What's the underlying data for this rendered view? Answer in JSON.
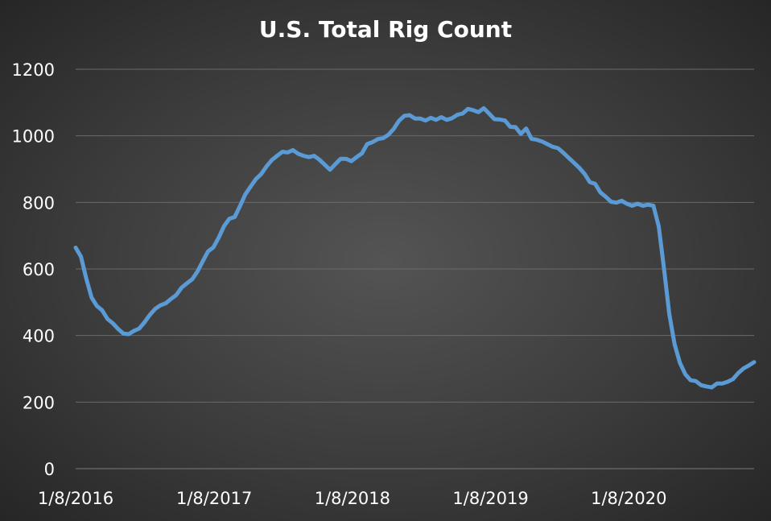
{
  "chart_data": {
    "type": "line",
    "title": "U.S. Total Rig Count",
    "xlabel": "",
    "ylabel": "",
    "ylim": [
      0,
      1200
    ],
    "yticks": [
      0,
      200,
      400,
      600,
      800,
      1000,
      1200
    ],
    "xticks": [
      "1/8/2016",
      "1/8/2017",
      "1/8/2018",
      "1/8/2019",
      "1/8/2020"
    ],
    "xrange": [
      "2016-01-08",
      "2020-12-04"
    ],
    "grid": true,
    "legend": "none",
    "line_color": "#5b9bd5",
    "series": [
      {
        "points": [
          [
            "2016-01-08",
            664
          ],
          [
            "2016-01-22",
            637
          ],
          [
            "2016-02-05",
            571
          ],
          [
            "2016-02-19",
            514
          ],
          [
            "2016-03-04",
            489
          ],
          [
            "2016-03-18",
            476
          ],
          [
            "2016-04-01",
            450
          ],
          [
            "2016-04-15",
            437
          ],
          [
            "2016-04-29",
            420
          ],
          [
            "2016-05-13",
            406
          ],
          [
            "2016-05-27",
            404
          ],
          [
            "2016-06-10",
            414
          ],
          [
            "2016-06-24",
            421
          ],
          [
            "2016-07-08",
            440
          ],
          [
            "2016-07-22",
            462
          ],
          [
            "2016-08-05",
            480
          ],
          [
            "2016-08-19",
            491
          ],
          [
            "2016-09-02",
            497
          ],
          [
            "2016-09-16",
            510
          ],
          [
            "2016-09-30",
            522
          ],
          [
            "2016-10-14",
            544
          ],
          [
            "2016-10-28",
            557
          ],
          [
            "2016-11-11",
            569
          ],
          [
            "2016-11-25",
            593
          ],
          [
            "2016-12-09",
            624
          ],
          [
            "2016-12-23",
            653
          ],
          [
            "2017-01-06",
            665
          ],
          [
            "2017-01-20",
            694
          ],
          [
            "2017-02-03",
            729
          ],
          [
            "2017-02-17",
            751
          ],
          [
            "2017-03-03",
            756
          ],
          [
            "2017-03-17",
            789
          ],
          [
            "2017-03-31",
            824
          ],
          [
            "2017-04-14",
            847
          ],
          [
            "2017-04-28",
            870
          ],
          [
            "2017-05-12",
            885
          ],
          [
            "2017-05-26",
            908
          ],
          [
            "2017-06-09",
            927
          ],
          [
            "2017-06-23",
            940
          ],
          [
            "2017-07-07",
            952
          ],
          [
            "2017-07-21",
            950
          ],
          [
            "2017-08-04",
            957
          ],
          [
            "2017-08-18",
            946
          ],
          [
            "2017-09-01",
            940
          ],
          [
            "2017-09-15",
            936
          ],
          [
            "2017-09-29",
            940
          ],
          [
            "2017-10-13",
            928
          ],
          [
            "2017-10-27",
            913
          ],
          [
            "2017-11-10",
            898
          ],
          [
            "2017-11-24",
            915
          ],
          [
            "2017-12-08",
            931
          ],
          [
            "2017-12-22",
            931
          ],
          [
            "2018-01-05",
            924
          ],
          [
            "2018-01-19",
            936
          ],
          [
            "2018-02-02",
            947
          ],
          [
            "2018-02-16",
            975
          ],
          [
            "2018-03-02",
            981
          ],
          [
            "2018-03-16",
            990
          ],
          [
            "2018-03-30",
            993
          ],
          [
            "2018-04-13",
            1003
          ],
          [
            "2018-04-27",
            1021
          ],
          [
            "2018-05-11",
            1045
          ],
          [
            "2018-05-25",
            1060
          ],
          [
            "2018-06-08",
            1062
          ],
          [
            "2018-06-22",
            1052
          ],
          [
            "2018-07-06",
            1052
          ],
          [
            "2018-07-20",
            1046
          ],
          [
            "2018-08-03",
            1054
          ],
          [
            "2018-08-17",
            1048
          ],
          [
            "2018-08-31",
            1056
          ],
          [
            "2018-09-14",
            1048
          ],
          [
            "2018-09-28",
            1053
          ],
          [
            "2018-10-12",
            1063
          ],
          [
            "2018-10-26",
            1067
          ],
          [
            "2018-11-09",
            1081
          ],
          [
            "2018-11-23",
            1077
          ],
          [
            "2018-12-07",
            1071
          ],
          [
            "2018-12-21",
            1083
          ],
          [
            "2019-01-04",
            1067
          ],
          [
            "2019-01-18",
            1050
          ],
          [
            "2019-02-01",
            1049
          ],
          [
            "2019-02-15",
            1046
          ],
          [
            "2019-03-01",
            1027
          ],
          [
            "2019-03-15",
            1026
          ],
          [
            "2019-03-29",
            1006
          ],
          [
            "2019-04-12",
            1022
          ],
          [
            "2019-04-26",
            991
          ],
          [
            "2019-05-10",
            988
          ],
          [
            "2019-05-24",
            983
          ],
          [
            "2019-06-07",
            975
          ],
          [
            "2019-06-21",
            967
          ],
          [
            "2019-07-05",
            963
          ],
          [
            "2019-07-19",
            949
          ],
          [
            "2019-08-02",
            934
          ],
          [
            "2019-08-16",
            919
          ],
          [
            "2019-08-30",
            904
          ],
          [
            "2019-09-13",
            886
          ],
          [
            "2019-09-27",
            861
          ],
          [
            "2019-10-11",
            856
          ],
          [
            "2019-10-25",
            830
          ],
          [
            "2019-11-08",
            817
          ],
          [
            "2019-11-22",
            802
          ],
          [
            "2019-12-06",
            799
          ],
          [
            "2019-12-20",
            805
          ],
          [
            "2020-01-03",
            796
          ],
          [
            "2020-01-17",
            790
          ],
          [
            "2020-01-31",
            796
          ],
          [
            "2020-02-14",
            790
          ],
          [
            "2020-02-28",
            793
          ],
          [
            "2020-03-13",
            790
          ],
          [
            "2020-03-27",
            728
          ],
          [
            "2020-04-10",
            602
          ],
          [
            "2020-04-24",
            465
          ],
          [
            "2020-05-08",
            374
          ],
          [
            "2020-05-22",
            318
          ],
          [
            "2020-06-05",
            284
          ],
          [
            "2020-06-19",
            266
          ],
          [
            "2020-07-03",
            263
          ],
          [
            "2020-07-17",
            251
          ],
          [
            "2020-07-31",
            247
          ],
          [
            "2020-08-14",
            244
          ],
          [
            "2020-08-28",
            256
          ],
          [
            "2020-09-11",
            256
          ],
          [
            "2020-09-25",
            261
          ],
          [
            "2020-10-09",
            269
          ],
          [
            "2020-10-23",
            287
          ],
          [
            "2020-11-06",
            301
          ],
          [
            "2020-11-20",
            310
          ],
          [
            "2020-12-04",
            320
          ]
        ]
      }
    ]
  }
}
